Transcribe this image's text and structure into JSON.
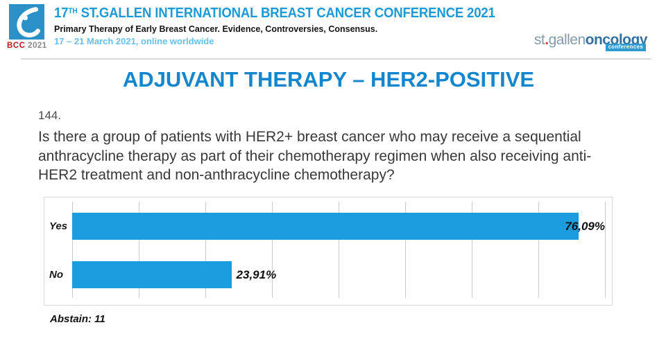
{
  "header": {
    "logo_badge": {
      "red": "BCC",
      "year": "2021"
    },
    "title_num": "17",
    "title_sup": "TH",
    "title_rest": " ST.GALLEN INTERNATIONAL BREAST CANCER CONFERENCE 2021",
    "subtitle": "Primary Therapy of Early Breast Cancer. Evidence, Controversies, Consensus.",
    "dates": "17 – 21 March 2021, online worldwide",
    "right_logo": {
      "part_st": "st",
      "dot": ".",
      "part_gallen": "gallen",
      "part_oncology": "oncology",
      "tag": "conferences"
    }
  },
  "slide": {
    "title": "ADJUVANT THERAPY – HER2-POSITIVE",
    "question_number": "144.",
    "question": "Is there a group of patients with HER2+ breast cancer who may receive a sequential\nanthracycline therapy as part of their chemotherapy regimen when also receiving anti-\nHER2 treatment and non-anthracycline chemotherapy?",
    "abstain_note": "Abstain: 11"
  },
  "chart_data": {
    "type": "bar",
    "orientation": "horizontal",
    "categories": [
      "Yes",
      "No"
    ],
    "values": [
      76.09,
      23.91
    ],
    "value_labels": [
      "76,09%",
      "23,91%"
    ],
    "abstain": 11,
    "xlim": [
      0,
      80
    ],
    "gridline_step": 10,
    "grid": true,
    "legend": false,
    "title": "",
    "xlabel": "",
    "ylabel": "",
    "bar_color": "#1B9CDE"
  },
  "colors": {
    "header_blue": "#1B9AD6",
    "dates_blue": "#67BFE9",
    "slide_title_blue": "#1486CE",
    "bar_blue": "#1B9CDE",
    "bcc_red": "#C4161C",
    "logo_square_blue": "#2C90C8",
    "oncology_blue": "#33719F",
    "badge_blue": "#2E9AD0"
  }
}
